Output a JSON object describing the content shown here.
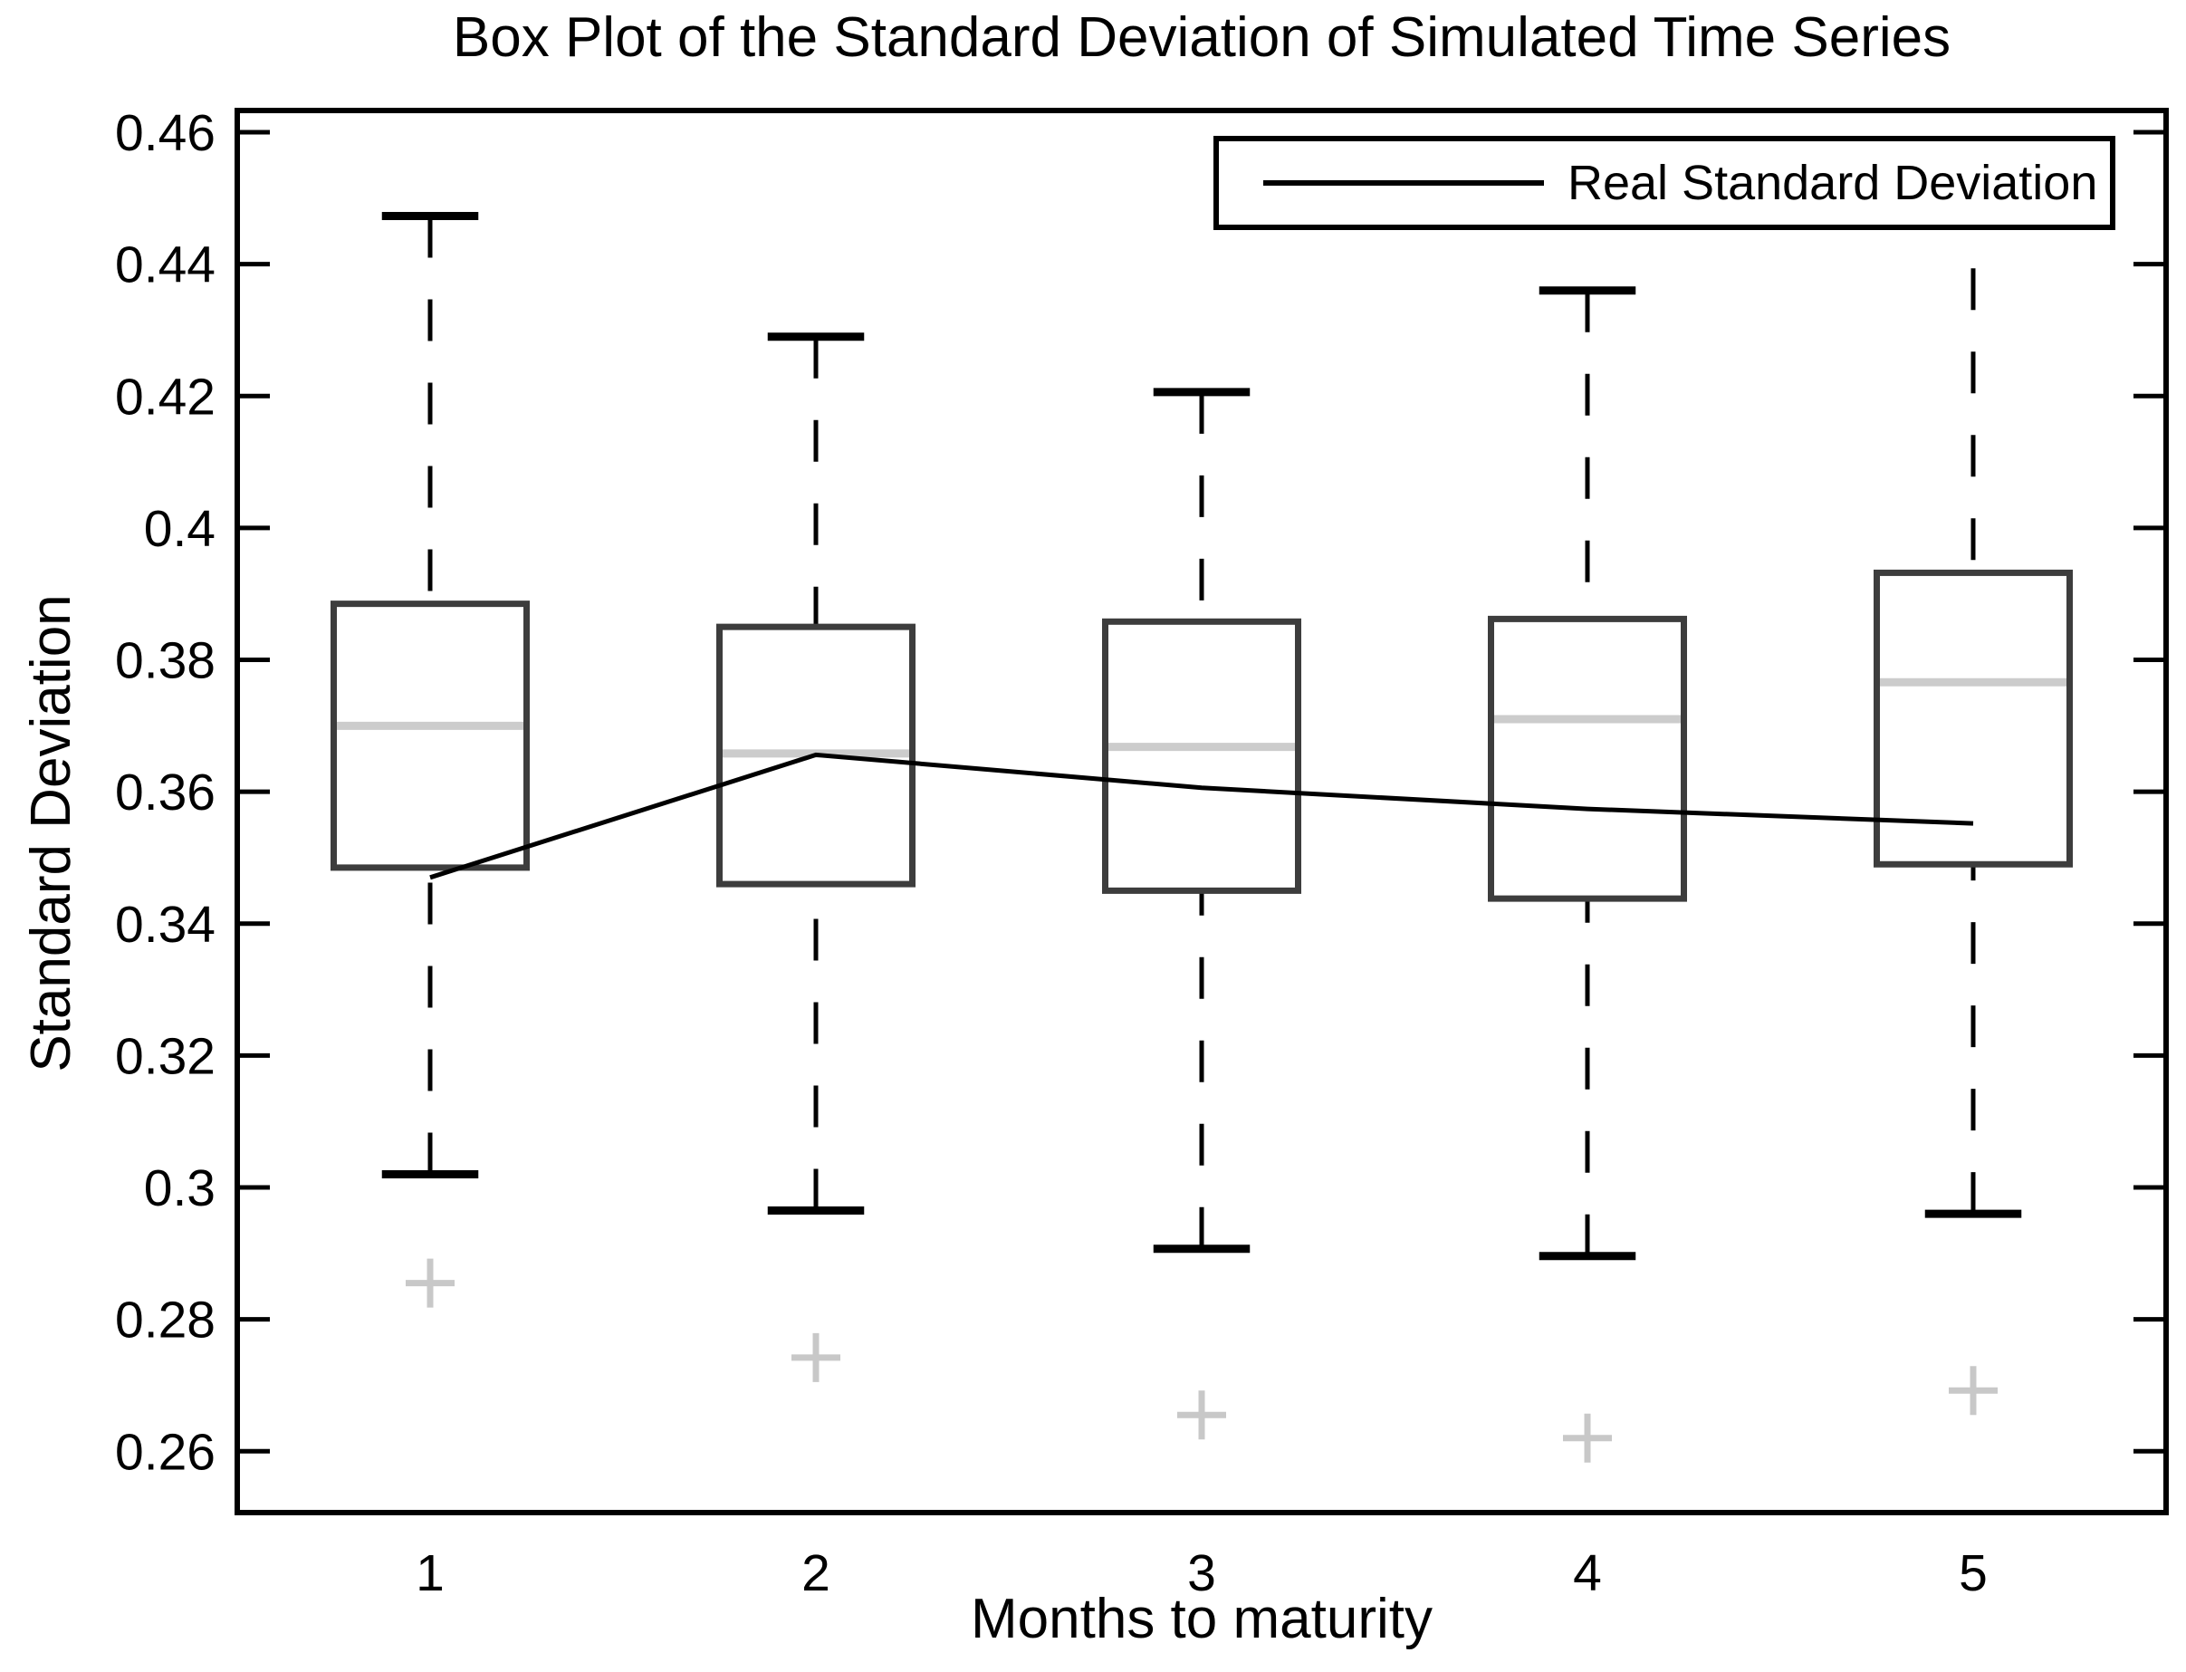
{
  "chart_data": {
    "type": "boxplot",
    "title": "Box Plot of the Standard Deviation of Simulated Time Series",
    "xlabel": "Months to maturity",
    "ylabel": "Standard Deviation",
    "legend": {
      "label": "Real Standard Deviation",
      "position": "top-right"
    },
    "grid": false,
    "xlim": [
      0.5,
      5.5
    ],
    "ylim": [
      0.2507,
      0.4633
    ],
    "x_ticks": [
      {
        "value": 1,
        "label": "1"
      },
      {
        "value": 2,
        "label": "2"
      },
      {
        "value": 3,
        "label": "3"
      },
      {
        "value": 4,
        "label": "4"
      },
      {
        "value": 5,
        "label": "5"
      }
    ],
    "y_ticks": [
      {
        "value": 0.46,
        "label": "0.46"
      },
      {
        "value": 0.44,
        "label": "0.44"
      },
      {
        "value": 0.42,
        "label": "0.42"
      },
      {
        "value": 0.4,
        "label": "0.4"
      },
      {
        "value": 0.38,
        "label": "0.38"
      },
      {
        "value": 0.36,
        "label": "0.36"
      },
      {
        "value": 0.34,
        "label": "0.34"
      },
      {
        "value": 0.32,
        "label": "0.32"
      },
      {
        "value": 0.3,
        "label": "0.3"
      },
      {
        "value": 0.28,
        "label": "0.28"
      },
      {
        "value": 0.26,
        "label": "0.26"
      }
    ],
    "box_width": 0.5,
    "cap_width": 0.25,
    "boxes": [
      {
        "month": 1,
        "whisker_low": 0.302,
        "q1": 0.3485,
        "median": 0.37,
        "q3": 0.3885,
        "whisker_high": 0.4473,
        "outliers": [
          0.2855
        ]
      },
      {
        "month": 2,
        "whisker_low": 0.2965,
        "q1": 0.346,
        "median": 0.3658,
        "q3": 0.385,
        "whisker_high": 0.429,
        "outliers": [
          0.2742
        ]
      },
      {
        "month": 3,
        "whisker_low": 0.2907,
        "q1": 0.345,
        "median": 0.3668,
        "q3": 0.3858,
        "whisker_high": 0.4206,
        "outliers": [
          0.2655
        ]
      },
      {
        "month": 4,
        "whisker_low": 0.2896,
        "q1": 0.3438,
        "median": 0.371,
        "q3": 0.3862,
        "whisker_high": 0.436,
        "outliers": [
          0.262
        ]
      },
      {
        "month": 5,
        "whisker_low": 0.296,
        "q1": 0.349,
        "median": 0.3766,
        "q3": 0.3932,
        "whisker_high": 0.452,
        "outliers": [
          0.2692
        ]
      }
    ],
    "series": [
      {
        "name": "Real Standard Deviation",
        "x": [
          1,
          2,
          3,
          4,
          5
        ],
        "values": [
          0.347,
          0.3656,
          0.3606,
          0.3574,
          0.3552
        ]
      }
    ],
    "colors": {
      "axis": "#000000",
      "box_edge": "#3d3d3d",
      "median": "#cccccc",
      "whisker": "#000000",
      "outlier": "#c8c8c8",
      "line": "#000000",
      "background": "#ffffff"
    }
  }
}
